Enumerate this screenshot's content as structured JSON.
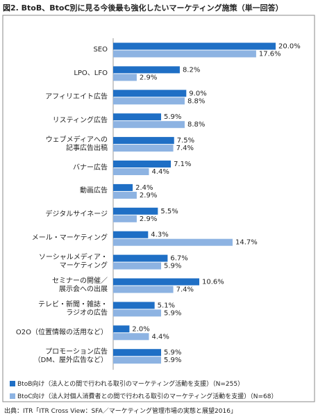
{
  "chart_data": {
    "type": "bar",
    "orientation": "horizontal",
    "title": "図2. BtoB、BtoC別に見る今後最も強化したいマーケティング施策（単一回答）",
    "categories": [
      "SEO",
      "LPO、LFO",
      "アフィリエイト広告",
      "リスティング広告",
      "ウェブメディアへの\n記事広告出稿",
      "バナー広告",
      "動画広告",
      "デジタルサイネージ",
      "メール・マーケティング",
      "ソーシャルメディア・\nマーケティング",
      "セミナーの開催／\n展示会への出展",
      "テレビ・新聞・雑誌・\nラジオの広告",
      "O2O（位置情報の活用など）",
      "プロモーション広告\n（DM、屋外広告など）"
    ],
    "series": [
      {
        "name": "BtoB向け（法人との間で行われる取引のマーケティング活動を支援）（N=255）",
        "color": "#1f6fc5",
        "values": [
          20.0,
          8.2,
          9.0,
          5.9,
          7.5,
          7.1,
          2.4,
          5.5,
          4.3,
          6.7,
          10.6,
          5.1,
          2.0,
          5.9
        ],
        "value_labels": [
          "20.0%",
          "8.2%",
          "9.0%",
          "5.9%",
          "7.5%",
          "7.1%",
          "2.4%",
          "5.5%",
          "4.3%",
          "6.7%",
          "10.6%",
          "5.1%",
          "2.0%",
          "5.9%"
        ]
      },
      {
        "name": "BtoC向け（法人対個人消費者との間で行われる取引のマーケティング活動を支援）（N=68）",
        "color": "#8db3e2",
        "values": [
          17.6,
          2.9,
          8.8,
          8.8,
          7.4,
          4.4,
          2.9,
          2.9,
          14.7,
          5.9,
          7.4,
          5.9,
          4.4,
          5.9
        ],
        "value_labels": [
          "17.6%",
          "2.9%",
          "8.8%",
          "8.8%",
          "7.4%",
          "4.4%",
          "2.9%",
          "2.9%",
          "14.7%",
          "5.9%",
          "7.4%",
          "5.9%",
          "4.4%",
          "5.9%"
        ]
      }
    ],
    "xlim": [
      0,
      20
    ],
    "source": "出典：ITR「ITR Cross View：SFA／マーケティング管理市場の実態と展望2016」"
  }
}
